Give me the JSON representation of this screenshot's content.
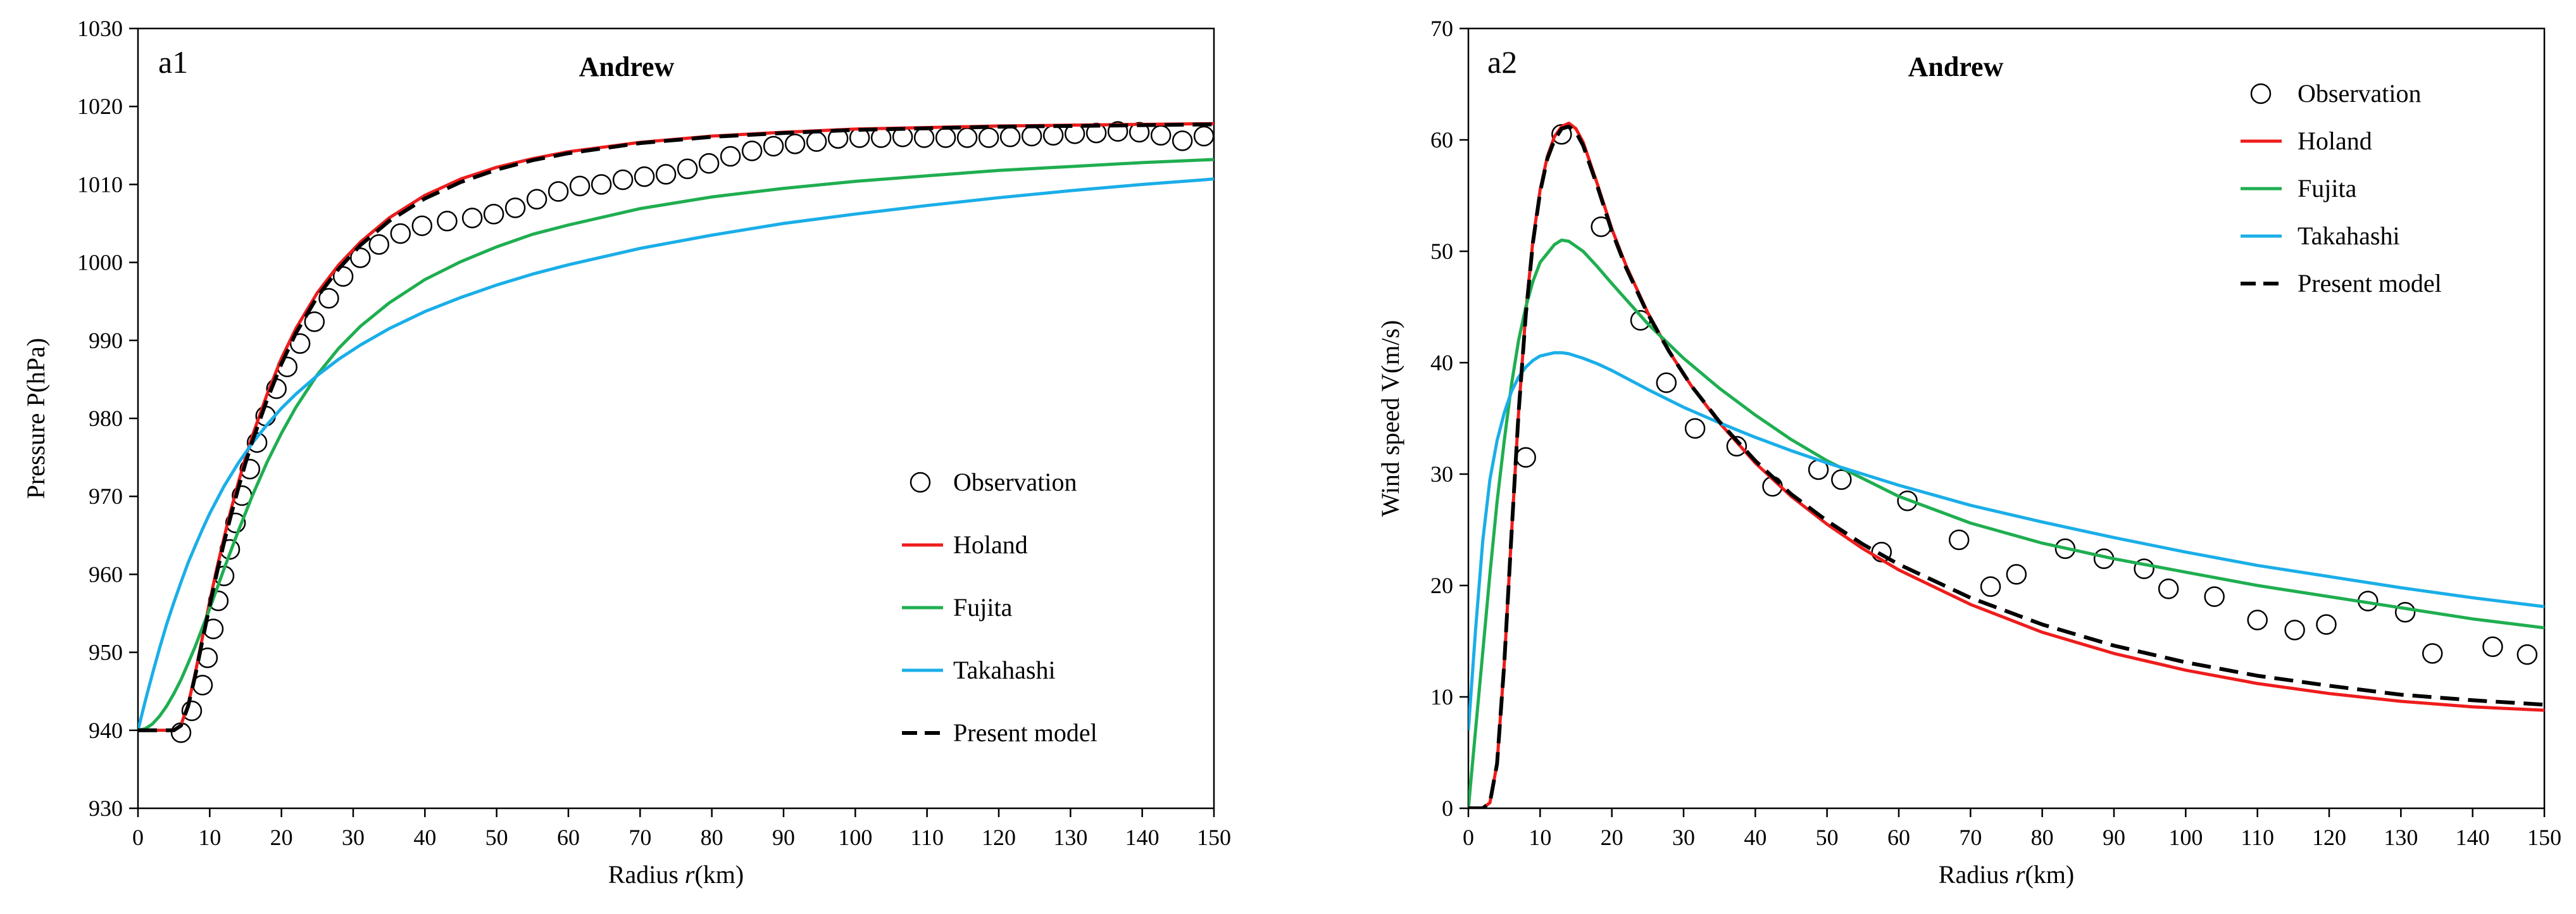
{
  "chart_data": [
    {
      "type": "line",
      "panel_label": "a1",
      "title": "Andrew",
      "xlabel_prefix": "Radius ",
      "xlabel_var": "r",
      "xlabel_suffix": "(km)",
      "ylabel": "Pressure P(hPa)",
      "xlim": [
        0,
        150
      ],
      "ylim": [
        930,
        1030
      ],
      "xticks": [
        0,
        10,
        20,
        30,
        40,
        50,
        60,
        70,
        80,
        90,
        100,
        110,
        120,
        130,
        140,
        150
      ],
      "yticks": [
        930,
        940,
        950,
        960,
        970,
        980,
        990,
        1000,
        1010,
        1020,
        1030
      ],
      "grid": false,
      "legend_position": "lower-right",
      "legend": [
        "Observation",
        "Holand",
        "Fujita",
        "Takahashi",
        "Present model"
      ],
      "observation": {
        "name": "Observation",
        "x": [
          6.0,
          7.5,
          9.0,
          9.7,
          10.5,
          11.2,
          12.0,
          12.8,
          13.6,
          14.5,
          15.6,
          16.6,
          17.8,
          19.3,
          20.8,
          22.6,
          24.6,
          26.6,
          28.6,
          31.0,
          33.6,
          36.6,
          39.6,
          43.1,
          46.6,
          49.6,
          52.6,
          55.6,
          58.6,
          61.6,
          64.6,
          67.6,
          70.6,
          73.6,
          76.6,
          79.6,
          82.6,
          85.6,
          88.6,
          91.6,
          94.6,
          97.6,
          100.6,
          103.6,
          106.6,
          109.6,
          112.6,
          115.6,
          118.6,
          121.6,
          124.6,
          127.6,
          130.6,
          133.6,
          136.6,
          139.6,
          142.6,
          145.6,
          148.6
        ],
        "y": [
          939.7,
          942.5,
          945.8,
          949.3,
          953.0,
          956.6,
          959.8,
          963.2,
          966.6,
          970.1,
          973.5,
          976.9,
          980.3,
          983.8,
          986.6,
          989.6,
          992.4,
          995.4,
          998.2,
          1000.6,
          1002.3,
          1003.7,
          1004.7,
          1005.3,
          1005.7,
          1006.2,
          1007.0,
          1008.1,
          1009.1,
          1009.8,
          1010.0,
          1010.6,
          1011.0,
          1011.3,
          1012.0,
          1012.7,
          1013.6,
          1014.3,
          1014.9,
          1015.2,
          1015.5,
          1015.9,
          1016.0,
          1016.0,
          1016.1,
          1016.0,
          1016.0,
          1016.0,
          1016.0,
          1016.1,
          1016.2,
          1016.3,
          1016.5,
          1016.6,
          1016.8,
          1016.7,
          1016.3,
          1015.6,
          1016.2
        ]
      },
      "series": [
        {
          "name": "Holand",
          "color": "#ee1c1c",
          "dash": "solid",
          "x": [
            0,
            5,
            6,
            7,
            8,
            9,
            10,
            11,
            12,
            13,
            14,
            15,
            16,
            18,
            20,
            22,
            25,
            28,
            31,
            35,
            40,
            45,
            50,
            55,
            60,
            70,
            80,
            90,
            100,
            110,
            120,
            130,
            140,
            150
          ],
          "y": [
            940.0,
            940.0,
            940.7,
            943.3,
            947.4,
            952.0,
            956.5,
            960.8,
            964.7,
            968.4,
            971.8,
            975.0,
            977.9,
            983.1,
            987.7,
            991.5,
            996.1,
            999.7,
            1002.6,
            1005.7,
            1008.6,
            1010.7,
            1012.2,
            1013.3,
            1014.2,
            1015.4,
            1016.2,
            1016.7,
            1017.1,
            1017.3,
            1017.5,
            1017.6,
            1017.7,
            1017.8
          ]
        },
        {
          "name": "Fujita",
          "color": "#1fae50",
          "dash": "solid",
          "x": [
            0,
            1,
            2,
            3,
            4,
            5,
            6,
            7,
            8,
            9,
            10,
            12,
            14,
            16,
            18,
            20,
            22,
            25,
            28,
            31,
            35,
            40,
            45,
            50,
            55,
            60,
            70,
            80,
            90,
            100,
            110,
            120,
            130,
            140,
            150
          ],
          "y": [
            940.0,
            940.2,
            940.8,
            941.8,
            943.1,
            944.7,
            946.5,
            948.6,
            950.8,
            953.2,
            955.6,
            960.7,
            965.6,
            970.2,
            974.4,
            978.1,
            981.4,
            985.6,
            989.0,
            991.8,
            994.8,
            997.8,
            1000.1,
            1002.0,
            1003.6,
            1004.8,
            1006.9,
            1008.4,
            1009.5,
            1010.4,
            1011.1,
            1011.8,
            1012.3,
            1012.8,
            1013.2
          ]
        },
        {
          "name": "Takahashi",
          "color": "#1aaee8",
          "dash": "solid",
          "x": [
            0,
            1,
            2,
            3,
            4,
            5,
            6,
            7,
            8,
            9,
            10,
            12,
            14,
            16,
            18,
            20,
            22,
            25,
            28,
            31,
            35,
            40,
            45,
            50,
            55,
            60,
            70,
            80,
            90,
            100,
            110,
            120,
            130,
            140,
            150
          ],
          "y": [
            940.0,
            943.7,
            947.2,
            950.5,
            953.6,
            956.4,
            959.0,
            961.5,
            963.7,
            965.8,
            967.8,
            971.3,
            974.3,
            976.9,
            979.2,
            981.3,
            983.1,
            985.5,
            987.6,
            989.4,
            991.5,
            993.7,
            995.5,
            997.1,
            998.5,
            999.7,
            1001.8,
            1003.5,
            1005.0,
            1006.2,
            1007.3,
            1008.3,
            1009.2,
            1010.0,
            1010.7
          ]
        },
        {
          "name": "Present model",
          "color": "#000000",
          "dash": "dashed",
          "x": [
            0,
            5,
            6,
            7,
            8,
            9,
            10,
            11,
            12,
            13,
            14,
            15,
            16,
            18,
            20,
            22,
            25,
            28,
            31,
            35,
            40,
            45,
            50,
            55,
            60,
            70,
            80,
            90,
            100,
            110,
            120,
            130,
            140,
            150
          ],
          "y": [
            940.0,
            940.0,
            940.6,
            943.1,
            947.1,
            951.6,
            956.0,
            960.2,
            964.1,
            967.7,
            971.1,
            974.3,
            977.2,
            982.4,
            987.0,
            990.9,
            995.6,
            999.2,
            1002.2,
            1005.3,
            1008.2,
            1010.3,
            1011.9,
            1013.1,
            1014.0,
            1015.3,
            1016.1,
            1016.6,
            1017.0,
            1017.2,
            1017.4,
            1017.5,
            1017.6,
            1017.7
          ]
        }
      ]
    },
    {
      "type": "line",
      "panel_label": "a2",
      "title": "Andrew",
      "xlabel_prefix": "Radius ",
      "xlabel_var": "r",
      "xlabel_suffix": "(km)",
      "ylabel": "Wind speed V(m/s)",
      "xlim": [
        0,
        150
      ],
      "ylim": [
        0,
        70
      ],
      "xticks": [
        0,
        10,
        20,
        30,
        40,
        50,
        60,
        70,
        80,
        90,
        100,
        110,
        120,
        130,
        140,
        150
      ],
      "yticks": [
        0,
        10,
        20,
        30,
        40,
        50,
        60,
        70
      ],
      "grid": false,
      "legend_position": "top-right",
      "legend": [
        "Observation",
        "Holand",
        "Fujita",
        "Takahashi",
        "Present model"
      ],
      "observation": {
        "name": "Observation",
        "x": [
          8.0,
          13.0,
          18.5,
          24.0,
          27.6,
          31.6,
          37.4,
          42.4,
          48.8,
          52.0,
          57.6,
          61.2,
          68.4,
          72.8,
          76.4,
          83.2,
          88.6,
          94.2,
          97.6,
          104.0,
          110.0,
          115.2,
          119.6,
          125.4,
          130.6,
          134.4,
          142.8,
          147.6
        ],
        "y": [
          31.5,
          60.5,
          52.2,
          43.8,
          38.2,
          34.1,
          32.5,
          28.9,
          30.4,
          29.5,
          23.0,
          27.6,
          24.1,
          19.9,
          21.0,
          23.3,
          22.4,
          21.5,
          19.7,
          19.0,
          16.9,
          16.0,
          16.5,
          18.6,
          17.6,
          13.9,
          14.5,
          13.8
        ]
      },
      "series": [
        {
          "name": "Holand",
          "color": "#ee1c1c",
          "dash": "solid",
          "x": [
            0,
            2,
            3,
            4,
            5,
            6,
            7,
            8,
            9,
            10,
            11,
            12,
            13,
            14,
            15,
            16,
            18,
            20,
            22,
            25,
            28,
            31,
            35,
            40,
            45,
            50,
            55,
            60,
            70,
            80,
            90,
            100,
            110,
            120,
            130,
            140,
            150
          ],
          "y": [
            0,
            0,
            0.5,
            4.0,
            13.0,
            24.5,
            35.5,
            44.5,
            51.0,
            55.5,
            58.5,
            60.3,
            61.2,
            61.5,
            61.0,
            59.8,
            56.0,
            52.0,
            48.7,
            44.5,
            41.0,
            38.0,
            34.6,
            31.0,
            28.0,
            25.5,
            23.3,
            21.4,
            18.3,
            15.8,
            13.9,
            12.4,
            11.2,
            10.3,
            9.6,
            9.1,
            8.8
          ]
        },
        {
          "name": "Fujita",
          "color": "#1fae50",
          "dash": "solid",
          "x": [
            0,
            1,
            2,
            3,
            4,
            5,
            6,
            7,
            8,
            9,
            10,
            12,
            13,
            14,
            16,
            18,
            20,
            25,
            30,
            35,
            40,
            45,
            50,
            60,
            70,
            80,
            90,
            100,
            110,
            120,
            130,
            140,
            150
          ],
          "y": [
            0,
            7.0,
            14.0,
            21.0,
            27.5,
            33.0,
            38.0,
            42.0,
            45.0,
            47.3,
            49.0,
            50.6,
            51.0,
            50.9,
            50.0,
            48.6,
            47.1,
            43.5,
            40.4,
            37.7,
            35.3,
            33.1,
            31.2,
            28.0,
            25.6,
            23.8,
            22.4,
            21.2,
            20.0,
            19.0,
            18.0,
            17.0,
            16.2
          ]
        },
        {
          "name": "Takahashi",
          "color": "#1aaee8",
          "dash": "solid",
          "x": [
            0,
            1,
            2,
            3,
            4,
            5,
            6,
            7,
            8,
            9,
            10,
            12,
            13,
            14,
            16,
            18,
            20,
            25,
            30,
            35,
            40,
            45,
            50,
            60,
            70,
            80,
            90,
            100,
            110,
            120,
            130,
            140,
            150
          ],
          "y": [
            7.0,
            16.0,
            24.0,
            29.5,
            33.0,
            35.5,
            37.4,
            38.7,
            39.6,
            40.2,
            40.6,
            40.9,
            40.9,
            40.8,
            40.4,
            39.9,
            39.3,
            37.6,
            36.0,
            34.6,
            33.3,
            32.1,
            31.0,
            29.0,
            27.2,
            25.7,
            24.3,
            23.0,
            21.8,
            20.8,
            19.8,
            18.9,
            18.1
          ]
        },
        {
          "name": "Present model",
          "color": "#000000",
          "dash": "dashed",
          "x": [
            0,
            2,
            3,
            4,
            5,
            6,
            7,
            8,
            9,
            10,
            11,
            12,
            13,
            14,
            15,
            16,
            18,
            20,
            22,
            25,
            28,
            31,
            35,
            40,
            45,
            50,
            55,
            60,
            70,
            80,
            90,
            100,
            110,
            120,
            130,
            140,
            150
          ],
          "y": [
            0,
            0,
            0.5,
            4.0,
            13.0,
            24.5,
            35.5,
            44.3,
            50.8,
            55.3,
            58.3,
            60.0,
            61.0,
            61.2,
            60.7,
            59.5,
            55.8,
            51.8,
            48.5,
            44.4,
            41.0,
            38.0,
            34.7,
            31.2,
            28.2,
            25.8,
            23.7,
            21.9,
            18.9,
            16.5,
            14.6,
            13.1,
            11.9,
            11.0,
            10.2,
            9.7,
            9.3
          ]
        }
      ]
    }
  ]
}
